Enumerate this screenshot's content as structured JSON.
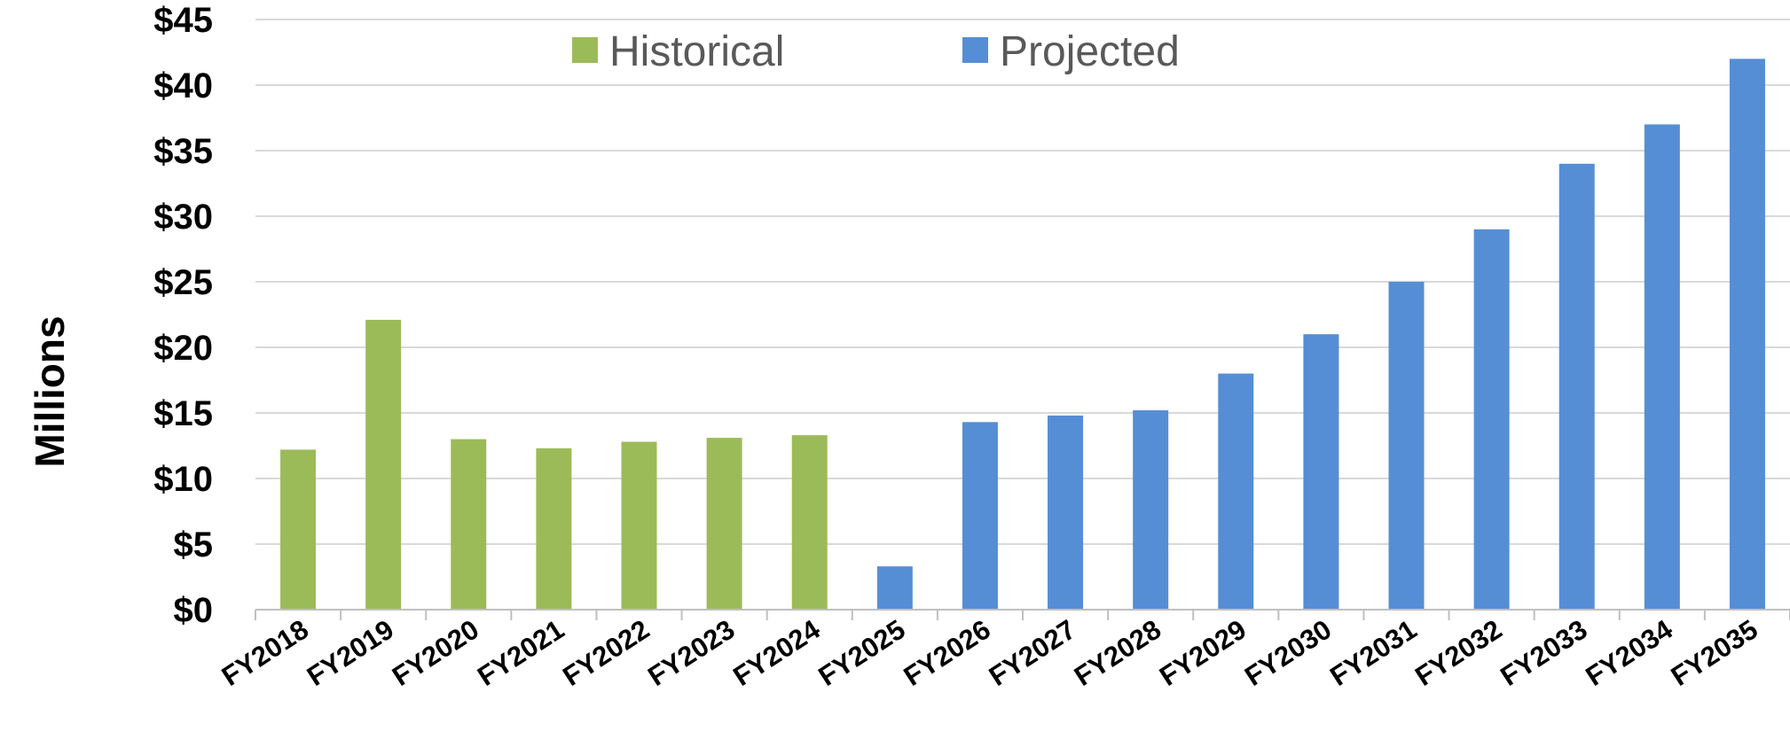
{
  "chart_data": {
    "type": "bar",
    "title": "",
    "xlabel": "",
    "ylabel": "Millions",
    "ylim": [
      0,
      45
    ],
    "yticks": [
      0,
      5,
      10,
      15,
      20,
      25,
      30,
      35,
      40,
      45
    ],
    "ytick_labels": [
      "$0",
      "$5",
      "$10",
      "$15",
      "$20",
      "$25",
      "$30",
      "$35",
      "$40",
      "$45"
    ],
    "grid": true,
    "legend_position": "top-center",
    "categories": [
      "FY2018",
      "FY2019",
      "FY2020",
      "FY2021",
      "FY2022",
      "FY2023",
      "FY2024",
      "FY2025",
      "FY2026",
      "FY2027",
      "FY2028",
      "FY2029",
      "FY2030",
      "FY2031",
      "FY2032",
      "FY2033",
      "FY2034",
      "FY2035"
    ],
    "series": [
      {
        "name": "Historical",
        "color": "#9bbb59",
        "values": [
          12.2,
          22.1,
          13.0,
          12.3,
          12.8,
          13.1,
          13.3,
          null,
          null,
          null,
          null,
          null,
          null,
          null,
          null,
          null,
          null,
          null
        ]
      },
      {
        "name": "Projected",
        "color": "#558ed5",
        "values": [
          null,
          null,
          null,
          null,
          null,
          null,
          null,
          3.3,
          14.3,
          14.8,
          15.2,
          18.0,
          21.0,
          25.0,
          29.0,
          34.0,
          37.0,
          42.0
        ]
      }
    ]
  }
}
